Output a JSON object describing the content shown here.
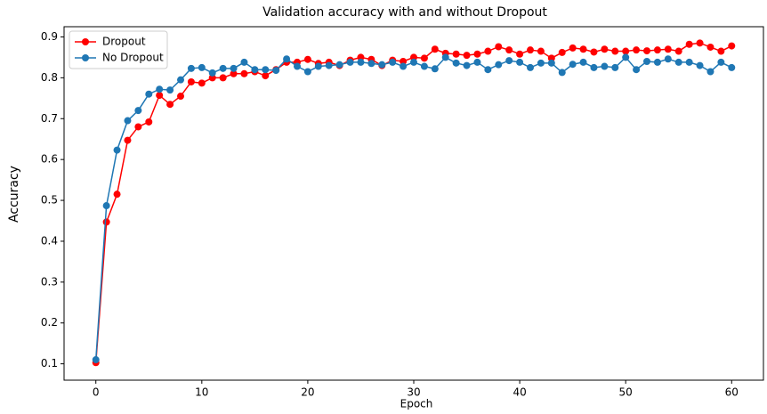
{
  "chart_data": {
    "type": "line",
    "title": "Validation accuracy with and without Dropout",
    "x_label": "Epoch",
    "y_label": "Accuracy",
    "x": [
      0,
      1,
      2,
      3,
      4,
      5,
      6,
      7,
      8,
      9,
      10,
      11,
      12,
      13,
      14,
      15,
      16,
      17,
      18,
      19,
      20,
      21,
      22,
      23,
      24,
      25,
      26,
      27,
      28,
      29,
      30,
      31,
      32,
      33,
      34,
      35,
      36,
      37,
      38,
      39,
      40,
      41,
      42,
      43,
      44,
      45,
      46,
      47,
      48,
      49,
      50,
      51,
      52,
      53,
      54,
      55,
      56,
      57,
      58,
      59,
      60
    ],
    "series": [
      {
        "name": "Dropout",
        "color": "#ff0000",
        "values": [
          0.103,
          0.447,
          0.515,
          0.647,
          0.68,
          0.692,
          0.757,
          0.735,
          0.755,
          0.79,
          0.787,
          0.8,
          0.8,
          0.81,
          0.81,
          0.815,
          0.805,
          0.82,
          0.838,
          0.838,
          0.845,
          0.835,
          0.838,
          0.83,
          0.843,
          0.85,
          0.845,
          0.83,
          0.843,
          0.84,
          0.85,
          0.848,
          0.87,
          0.86,
          0.858,
          0.855,
          0.858,
          0.865,
          0.876,
          0.868,
          0.858,
          0.868,
          0.865,
          0.848,
          0.862,
          0.873,
          0.87,
          0.863,
          0.87,
          0.865,
          0.865,
          0.868,
          0.866,
          0.868,
          0.87,
          0.865,
          0.882,
          0.885,
          0.875,
          0.865,
          0.878
        ]
      },
      {
        "name": "No Dropout",
        "color": "#1f77b4",
        "values": [
          0.11,
          0.487,
          0.623,
          0.695,
          0.72,
          0.76,
          0.772,
          0.77,
          0.795,
          0.823,
          0.825,
          0.812,
          0.823,
          0.823,
          0.838,
          0.82,
          0.82,
          0.818,
          0.846,
          0.828,
          0.815,
          0.828,
          0.83,
          0.832,
          0.838,
          0.838,
          0.835,
          0.832,
          0.838,
          0.828,
          0.838,
          0.828,
          0.822,
          0.85,
          0.836,
          0.83,
          0.838,
          0.82,
          0.832,
          0.842,
          0.838,
          0.825,
          0.836,
          0.836,
          0.813,
          0.833,
          0.838,
          0.825,
          0.828,
          0.825,
          0.85,
          0.82,
          0.84,
          0.838,
          0.846,
          0.838,
          0.838,
          0.83,
          0.815,
          0.838,
          0.825
        ]
      }
    ],
    "xlim": [
      -3,
      63
    ],
    "xticks": [
      0,
      10,
      20,
      30,
      40,
      50,
      60
    ],
    "ylim": [
      0.06,
      0.925
    ],
    "yticks": [
      0.1,
      0.2,
      0.3,
      0.4,
      0.5,
      0.6,
      0.7,
      0.8,
      0.9
    ],
    "legend": "upper left",
    "grid": false
  }
}
